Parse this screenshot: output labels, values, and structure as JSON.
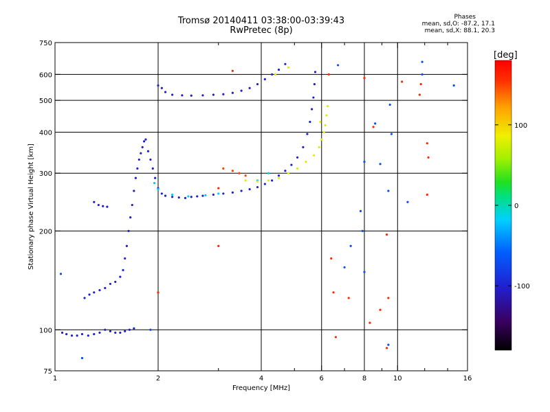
{
  "title": "Tromsø 20140411 03:38:00-03:39:43",
  "subtitle": "RwPretec (8p)",
  "phase_stats": {
    "heading": "Phases",
    "line_o": "mean, sd,O: -87.2, 17.1",
    "line_x": "mean, sd,X:  88.1, 20.3"
  },
  "colorbar": {
    "label": "[deg]",
    "ticks": [
      {
        "value": 100,
        "label": "100"
      },
      {
        "value": 0,
        "label": "0"
      },
      {
        "value": -100,
        "label": "-100"
      }
    ],
    "range": [
      -180,
      180
    ]
  },
  "chart_data": {
    "type": "scatter",
    "xlabel": "Frequency [MHz]",
    "ylabel": "Stationary phase Virtual Height [km]",
    "xscale": "log",
    "yscale": "log",
    "xlim": [
      1,
      16
    ],
    "ylim": [
      75,
      750
    ],
    "xticks": [
      {
        "value": 1,
        "label": "1"
      },
      {
        "value": 2,
        "label": "2"
      },
      {
        "value": 4,
        "label": "4"
      },
      {
        "value": 6,
        "label": "6"
      },
      {
        "value": 8,
        "label": "8"
      },
      {
        "value": 10,
        "label": "10"
      },
      {
        "value": 16,
        "label": "16"
      }
    ],
    "x_gridlines": [
      2,
      4,
      6,
      8,
      10
    ],
    "x_minor_ticks": [
      3,
      5,
      7,
      9,
      12,
      14
    ],
    "yticks": [
      {
        "value": 75,
        "label": "75"
      },
      {
        "value": 100,
        "label": "100"
      },
      {
        "value": 200,
        "label": "200"
      },
      {
        "value": 300,
        "label": "300"
      },
      {
        "value": 400,
        "label": "400"
      },
      {
        "value": 500,
        "label": "500"
      },
      {
        "value": 600,
        "label": "600"
      },
      {
        "value": 750,
        "label": "750"
      }
    ],
    "y_gridlines": [
      100,
      200,
      300,
      400,
      500,
      600
    ],
    "grid": true,
    "series": [
      {
        "color_value": -100,
        "points": [
          [
            1.05,
            98
          ],
          [
            1.08,
            97
          ],
          [
            1.12,
            96
          ],
          [
            1.16,
            96
          ],
          [
            1.2,
            97
          ],
          [
            1.25,
            96
          ],
          [
            1.3,
            97
          ],
          [
            1.35,
            98
          ],
          [
            1.4,
            100
          ],
          [
            1.45,
            99
          ],
          [
            1.5,
            98
          ],
          [
            1.55,
            98
          ],
          [
            1.6,
            99
          ],
          [
            1.65,
            100
          ],
          [
            1.7,
            101
          ],
          [
            1.22,
            125
          ],
          [
            1.26,
            128
          ],
          [
            1.3,
            130
          ],
          [
            1.35,
            132
          ],
          [
            1.4,
            134
          ],
          [
            1.45,
            138
          ],
          [
            1.5,
            140
          ],
          [
            1.55,
            145
          ],
          [
            1.58,
            152
          ],
          [
            1.6,
            165
          ],
          [
            1.62,
            180
          ],
          [
            1.64,
            200
          ],
          [
            1.66,
            220
          ],
          [
            1.68,
            240
          ],
          [
            1.7,
            265
          ],
          [
            1.72,
            290
          ],
          [
            1.74,
            310
          ],
          [
            1.76,
            330
          ],
          [
            1.78,
            345
          ],
          [
            1.8,
            360
          ],
          [
            1.82,
            375
          ],
          [
            1.84,
            380
          ],
          [
            1.3,
            245
          ],
          [
            1.34,
            240
          ],
          [
            1.38,
            238
          ],
          [
            1.42,
            237
          ],
          [
            1.87,
            350
          ],
          [
            1.9,
            330
          ],
          [
            1.93,
            310
          ],
          [
            1.96,
            290
          ],
          [
            2.0,
            270
          ],
          [
            2.05,
            260
          ],
          [
            2.1,
            256
          ],
          [
            2.2,
            254
          ],
          [
            2.3,
            253
          ],
          [
            2.4,
            252
          ],
          [
            2.5,
            254
          ],
          [
            2.6,
            255
          ],
          [
            2.7,
            256
          ],
          [
            2.9,
            258
          ],
          [
            3.1,
            260
          ],
          [
            3.3,
            262
          ],
          [
            3.5,
            265
          ],
          [
            3.7,
            268
          ],
          [
            3.9,
            272
          ],
          [
            4.1,
            278
          ],
          [
            4.3,
            285
          ],
          [
            4.5,
            295
          ],
          [
            4.7,
            305
          ],
          [
            4.9,
            318
          ],
          [
            5.1,
            335
          ],
          [
            5.3,
            360
          ],
          [
            5.45,
            395
          ],
          [
            5.55,
            430
          ],
          [
            5.62,
            470
          ],
          [
            5.68,
            510
          ],
          [
            5.72,
            560
          ],
          [
            5.75,
            610
          ],
          [
            2.0,
            555
          ],
          [
            2.05,
            545
          ],
          [
            2.1,
            530
          ],
          [
            2.2,
            520
          ],
          [
            2.35,
            518
          ],
          [
            2.5,
            517
          ],
          [
            2.7,
            518
          ],
          [
            2.9,
            520
          ],
          [
            3.1,
            522
          ],
          [
            3.3,
            527
          ],
          [
            3.5,
            535
          ],
          [
            3.7,
            545
          ],
          [
            3.9,
            560
          ],
          [
            4.1,
            580
          ],
          [
            4.3,
            600
          ],
          [
            4.5,
            620
          ],
          [
            4.7,
            645
          ]
        ]
      },
      {
        "color_value": -20,
        "points": [
          [
            2.2,
            258
          ],
          [
            2.45,
            255
          ],
          [
            2.75,
            257
          ],
          [
            3.0,
            260
          ],
          [
            1.95,
            280
          ],
          [
            2.0,
            268
          ],
          [
            3.9,
            285
          ],
          [
            4.2,
            300
          ]
        ]
      },
      {
        "color_value": 80,
        "points": [
          [
            3.6,
            285
          ],
          [
            3.9,
            283
          ],
          [
            4.2,
            285
          ],
          [
            4.5,
            290
          ],
          [
            4.8,
            300
          ],
          [
            5.1,
            310
          ],
          [
            5.4,
            325
          ],
          [
            5.7,
            340
          ],
          [
            5.9,
            360
          ],
          [
            6.0,
            380
          ],
          [
            6.1,
            400
          ],
          [
            6.15,
            420
          ],
          [
            6.2,
            450
          ],
          [
            6.25,
            480
          ],
          [
            5.95,
            430
          ],
          [
            4.4,
            600
          ],
          [
            4.8,
            630
          ]
        ]
      },
      {
        "color_value": 150,
        "points": [
          [
            3.1,
            310
          ],
          [
            3.3,
            305
          ],
          [
            3.45,
            300
          ],
          [
            3.6,
            295
          ]
        ]
      },
      {
        "color_value": 160,
        "points": [
          [
            6.5,
            130
          ],
          [
            6.6,
            95
          ],
          [
            7.2,
            125
          ],
          [
            6.4,
            165
          ],
          [
            8.3,
            105
          ],
          [
            9.3,
            88
          ],
          [
            9.3,
            195
          ],
          [
            6.3,
            600
          ],
          [
            8.0,
            585
          ],
          [
            8.5,
            415
          ],
          [
            10.3,
            570
          ],
          [
            11.6,
            520
          ],
          [
            12.2,
            370
          ],
          [
            12.3,
            335
          ],
          [
            11.7,
            560
          ],
          [
            12.2,
            258
          ],
          [
            9.4,
            125
          ],
          [
            8.9,
            115
          ],
          [
            2.0,
            130
          ],
          [
            3.0,
            270
          ],
          [
            3.0,
            180
          ],
          [
            3.3,
            615
          ]
        ]
      },
      {
        "color_value": -70,
        "points": [
          [
            7.0,
            155
          ],
          [
            7.3,
            180
          ],
          [
            8.0,
            150
          ],
          [
            8.6,
            425
          ],
          [
            8.9,
            320
          ],
          [
            9.5,
            485
          ],
          [
            9.6,
            395
          ],
          [
            9.4,
            265
          ],
          [
            9.4,
            90
          ],
          [
            10.7,
            245
          ],
          [
            11.8,
            600
          ],
          [
            14.6,
            555
          ],
          [
            11.8,
            655
          ],
          [
            6.7,
            640
          ],
          [
            7.9,
            200
          ],
          [
            7.8,
            230
          ],
          [
            8.0,
            325
          ],
          [
            1.9,
            100
          ],
          [
            1.04,
            148
          ],
          [
            1.2,
            82
          ]
        ]
      }
    ]
  }
}
